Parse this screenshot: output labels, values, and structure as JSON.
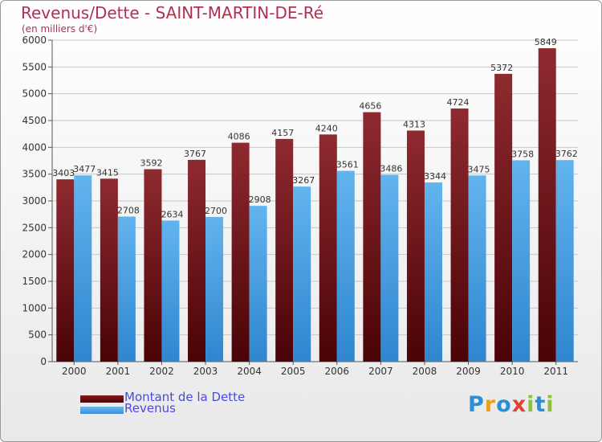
{
  "header": {
    "title": "Revenus/Dette - SAINT-MARTIN-DE-Ré",
    "subtitle": "(en milliers d'€)"
  },
  "legend": {
    "items": [
      {
        "label": "Montant de la Dette",
        "color": "#6b0a0e"
      },
      {
        "label": "Revenus",
        "color": "#4da3e3"
      }
    ]
  },
  "logo": {
    "letters": [
      "P",
      "r",
      "o",
      "x",
      "i",
      "t",
      "i"
    ],
    "colors": [
      "#2a8fd4",
      "#e8a020",
      "#2a8fd4",
      "#e04030",
      "#8bc040",
      "#2a8fd4",
      "#8bc040"
    ]
  },
  "chart_data": {
    "type": "bar",
    "title": "Revenus/Dette - SAINT-MARTIN-DE-Ré",
    "subtitle": "(en milliers d'€)",
    "categories": [
      "2000",
      "2001",
      "2002",
      "2003",
      "2004",
      "2005",
      "2006",
      "2007",
      "2008",
      "2009",
      "2010",
      "2011"
    ],
    "series": [
      {
        "name": "Montant de la Dette",
        "color": "#6b0a0e",
        "values": [
          3403,
          3415,
          3592,
          3767,
          4086,
          4157,
          4240,
          4656,
          4313,
          4724,
          5372,
          5849
        ]
      },
      {
        "name": "Revenus",
        "color": "#4da3e3",
        "values": [
          3477,
          2708,
          2634,
          2700,
          2908,
          3267,
          3561,
          3486,
          3344,
          3475,
          3758,
          3762
        ]
      }
    ],
    "ylim": [
      0,
      6000
    ],
    "yticks": [
      0,
      500,
      1000,
      1500,
      2000,
      2500,
      3000,
      3500,
      4000,
      4500,
      5000,
      5500,
      6000
    ],
    "grid": true,
    "legend_position": "bottom-left"
  }
}
